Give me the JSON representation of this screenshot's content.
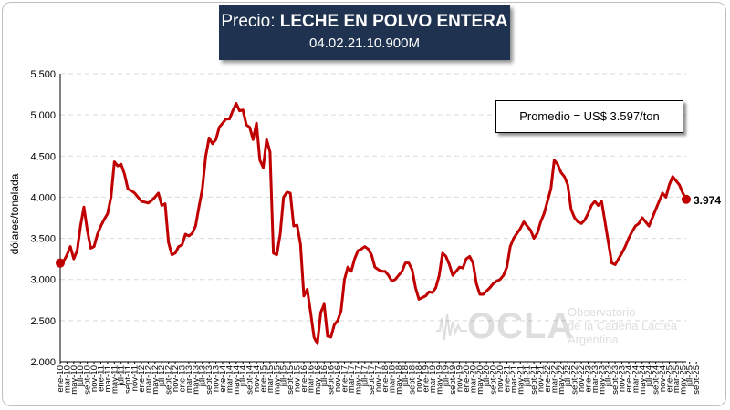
{
  "title": {
    "prefix": "Precio: ",
    "product": "LECHE EN POLVO ENTERA",
    "code": "04.02.21.10.900M"
  },
  "average_label": "Promedio = US$ 3.597/ton",
  "last_value_label": "3.974",
  "watermark": {
    "logo": "OCLA",
    "line1": "Observatorio",
    "line2": "de la Cadena Láctea",
    "line3": "Argentina"
  },
  "colors": {
    "title_bg": "#1f3350",
    "line": "#c00000",
    "grid": "#d9d9d9"
  },
  "chart_data": {
    "type": "line",
    "ylabel": "dólares/tonelada",
    "ylim": [
      2000,
      5500
    ],
    "yticks": [
      2000,
      2500,
      3000,
      3500,
      4000,
      4500,
      5000,
      5500
    ],
    "ytick_labels": [
      "2.000",
      "2.500",
      "3.000",
      "3.500",
      "4.000",
      "4.500",
      "5.000",
      "5.500"
    ],
    "grid": "horizontal dashed",
    "xtick_labels": [
      "ene-10",
      "mar-10",
      "may-10",
      "jul-10",
      "sept-10",
      "nov-10",
      "ene-11",
      "mar-11",
      "may-11",
      "jul-11",
      "sept-11",
      "nov-11",
      "ene-12",
      "mar-12",
      "may-12",
      "jul-12",
      "sept-12",
      "nov-12",
      "ene-13",
      "mar-13",
      "may-13",
      "jul-13",
      "sept-13",
      "nov-13",
      "ene-14",
      "mar-14",
      "may-14",
      "jul-14",
      "sept-14",
      "nov-14",
      "ene-15",
      "mar-15",
      "may-15",
      "jul-15",
      "sept-15",
      "nov-15",
      "ene-16",
      "mar-16",
      "may-16",
      "jul-16",
      "sept-16",
      "nov-16",
      "ene-17",
      "mar-17",
      "may-17",
      "jul-17",
      "sept-17",
      "nov-17",
      "ene-18",
      "mar-18",
      "may-18",
      "jul-18",
      "sept-18",
      "nov-18",
      "ene-19",
      "mar-19",
      "may-19",
      "jul-19",
      "sept-19",
      "nov-19",
      "ene-20",
      "mar-20",
      "may-20",
      "jul-20",
      "sept-20",
      "nov-20",
      "ene-21",
      "mar-21",
      "may-21",
      "jul-21",
      "sept-21",
      "nov-21",
      "ene-22",
      "mar-22",
      "may-22",
      "jul-22",
      "sept-22",
      "nov-22",
      "ene-23",
      "mar-23",
      "may-23",
      "jul-23",
      "sept-23",
      "nov-23",
      "ene-24",
      "mar-24",
      "may-24",
      "jul-24",
      "sept-24",
      "nov-24",
      "ene-25",
      "mar-25",
      "may-25",
      "jul-25",
      "sept-25"
    ],
    "series": [
      {
        "values": [
          3200,
          3220,
          3300,
          3400,
          3250,
          3350,
          3650,
          3880,
          3600,
          3380,
          3400,
          3550,
          3650,
          3730,
          3800,
          4000,
          4430,
          4380,
          4400,
          4280,
          4100,
          4080,
          4050,
          4000,
          3950,
          3940,
          3930,
          3960,
          4000,
          4050,
          3900,
          3920,
          3450,
          3300,
          3320,
          3400,
          3420,
          3550,
          3530,
          3560,
          3650,
          3880,
          4100,
          4500,
          4720,
          4650,
          4700,
          4850,
          4900,
          4950,
          4950,
          5050,
          5140,
          5050,
          5060,
          4880,
          4850,
          4700,
          4900,
          4450,
          4360,
          4700,
          4550,
          3320,
          3300,
          3550,
          4000,
          4060,
          4050,
          3650,
          3660,
          3430,
          2800,
          2880,
          2600,
          2300,
          2220,
          2600,
          2700,
          2310,
          2300,
          2450,
          2500,
          2620,
          3000,
          3150,
          3100,
          3250,
          3350,
          3370,
          3400,
          3370,
          3300,
          3150,
          3120,
          3100,
          3100,
          3050,
          2980,
          3000,
          3050,
          3100,
          3200,
          3200,
          3120,
          2900,
          2760,
          2780,
          2800,
          2850,
          2840,
          2900,
          3050,
          3320,
          3280,
          3180,
          3050,
          3100,
          3150,
          3140,
          3250,
          3280,
          3200,
          2950,
          2820,
          2820,
          2860,
          2900,
          2950,
          2980,
          3000,
          3050,
          3150,
          3400,
          3500,
          3560,
          3620,
          3700,
          3650,
          3600,
          3500,
          3560,
          3700,
          3800,
          3950,
          4100,
          4450,
          4400,
          4300,
          4250,
          4150,
          3850,
          3750,
          3700,
          3680,
          3720,
          3800,
          3900,
          3950,
          3900,
          3950,
          3700,
          3450,
          3200,
          3180,
          3250,
          3320,
          3400,
          3500,
          3580,
          3650,
          3680,
          3750,
          3700,
          3650,
          3750,
          3850,
          3950,
          4050,
          4000,
          4150,
          4250,
          4200,
          4150,
          4050,
          3974
        ]
      }
    ],
    "last_value": 3974,
    "average": 3597
  }
}
